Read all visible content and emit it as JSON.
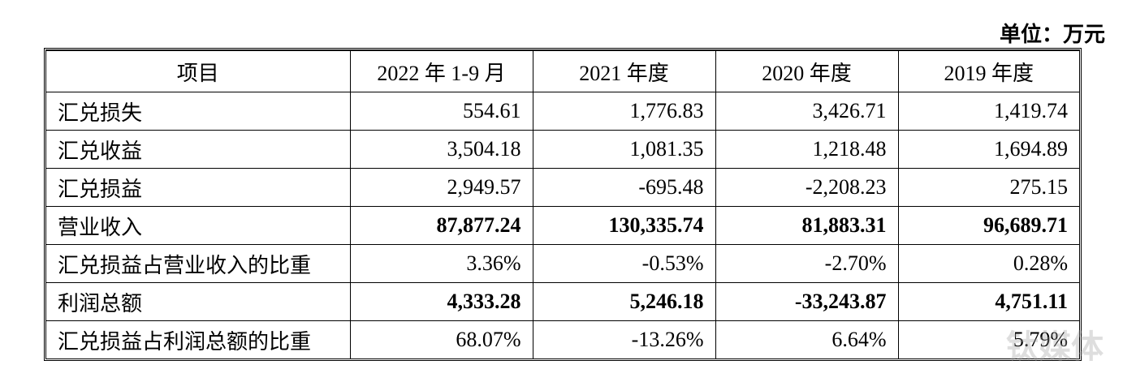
{
  "unit": "单位：万元",
  "watermark": "钛媒体",
  "table": {
    "header": [
      "项目",
      "2022 年 1-9 月",
      "2021 年度",
      "2020 年度",
      "2019 年度"
    ],
    "rows": [
      {
        "cells": [
          "汇兑损失",
          "554.61",
          "1,776.83",
          "3,426.71",
          "1,419.74"
        ],
        "bold": false
      },
      {
        "cells": [
          "汇兑收益",
          "3,504.18",
          "1,081.35",
          "1,218.48",
          "1,694.89"
        ],
        "bold": false
      },
      {
        "cells": [
          "汇兑损益",
          "2,949.57",
          "-695.48",
          "-2,208.23",
          "275.15"
        ],
        "bold": false
      },
      {
        "cells": [
          "营业收入",
          "87,877.24",
          "130,335.74",
          "81,883.31",
          "96,689.71"
        ],
        "bold": true
      },
      {
        "cells": [
          "汇兑损益占营业收入的比重",
          "3.36%",
          "-0.53%",
          "-2.70%",
          "0.28%"
        ],
        "bold": false
      },
      {
        "cells": [
          "利润总额",
          "4,333.28",
          "5,246.18",
          "-33,243.87",
          "4,751.11"
        ],
        "bold": true
      },
      {
        "cells": [
          "汇兑损益占利润总额的比重",
          "68.07%",
          "-13.26%",
          "6.64%",
          "5.79%"
        ],
        "bold": false
      }
    ]
  }
}
